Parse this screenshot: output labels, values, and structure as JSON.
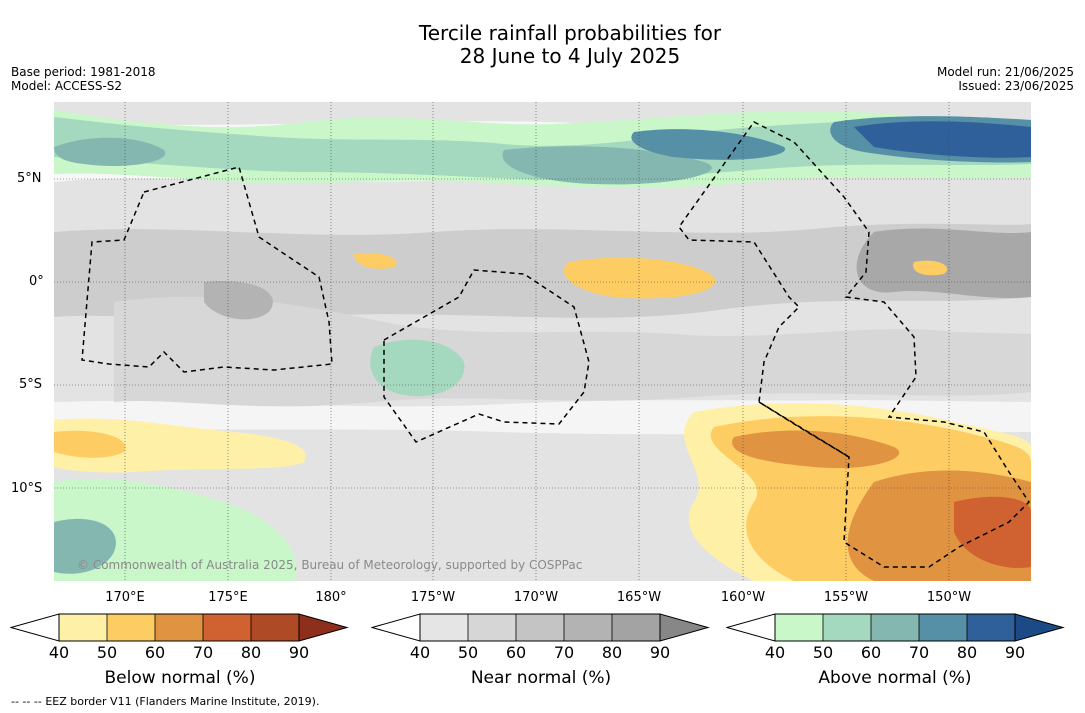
{
  "title_line1": "Tercile rainfall probabilities for",
  "title_line2": "28 June to 4 July 2025",
  "meta_left": {
    "base_period": "Base period: 1981-2018",
    "model": "Model: ACCESS-S2"
  },
  "meta_right": {
    "model_run": "Model run: 21/06/2025",
    "issued": "Issued: 23/06/2025"
  },
  "copyright": "© Commonwealth of Australia 2025, Bureau of Meteorology, supported by COSPPac",
  "lat_labels": [
    "5°N",
    "0°",
    "5°S",
    "10°S"
  ],
  "lon_labels": [
    "170°E",
    "175°E",
    "180°",
    "175°W",
    "170°W",
    "165°W",
    "160°W",
    "155°W",
    "150°W"
  ],
  "colorbars": [
    {
      "title": "Below normal (%)",
      "ticks": [
        "40",
        "50",
        "60",
        "70",
        "80",
        "90"
      ],
      "colors": [
        "#fff0a8",
        "#fdcc62",
        "#e09442",
        "#cf6230",
        "#ae4a25"
      ],
      "extend_color": "#8e2f1b"
    },
    {
      "title": "Near normal (%)",
      "ticks": [
        "40",
        "50",
        "60",
        "70",
        "80",
        "90"
      ],
      "colors": [
        "#e5e5e5",
        "#d6d6d6",
        "#c4c4c4",
        "#b3b3b3",
        "#a3a3a3"
      ],
      "extend_color": "#878787"
    },
    {
      "title": "Above normal (%)",
      "ticks": [
        "40",
        "50",
        "60",
        "70",
        "80",
        "90"
      ],
      "colors": [
        "#c9f7c9",
        "#a4d8bf",
        "#85b7b1",
        "#5690a6",
        "#30609a"
      ],
      "extend_color": "#1b4a87"
    }
  ],
  "footnote": "EEZ border V11 (Flanders Marine Institute, 2019).",
  "legend_dash": "-- -- --"
}
